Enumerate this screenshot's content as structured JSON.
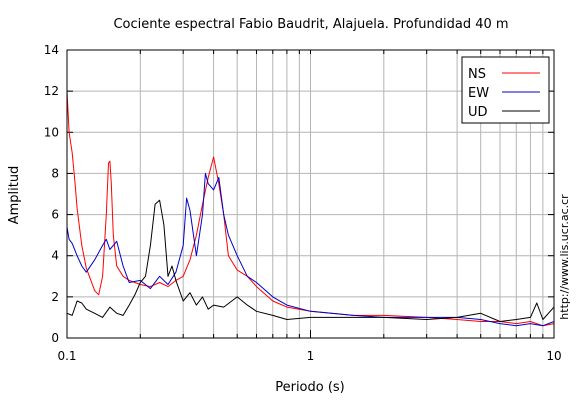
{
  "chart_data": {
    "type": "line",
    "title": "Cociente espectral Fabio Baudrit, Alajuela. Profundidad 40 m",
    "xlabel": "Periodo (s)",
    "ylabel": "Amplitud",
    "x_scale": "log",
    "xlim": [
      0.1,
      10
    ],
    "ylim": [
      0,
      14
    ],
    "x_ticks": [
      0.1,
      1,
      10
    ],
    "x_tick_labels": [
      "0.1",
      "1",
      "10"
    ],
    "y_ticks": [
      0,
      2,
      4,
      6,
      8,
      10,
      12,
      14
    ],
    "y_tick_labels": [
      "0",
      "2",
      "4",
      "6",
      "8",
      "10",
      "12",
      "14"
    ],
    "grid": true,
    "legend_position": "top-right",
    "side_text": "http://www.lis.ucr.ac.cr",
    "series": [
      {
        "name": "NS",
        "color": "#ff0000",
        "x": [
          0.1,
          0.102,
          0.105,
          0.108,
          0.11,
          0.115,
          0.12,
          0.13,
          0.135,
          0.14,
          0.145,
          0.148,
          0.15,
          0.152,
          0.155,
          0.16,
          0.17,
          0.18,
          0.2,
          0.22,
          0.24,
          0.26,
          0.28,
          0.3,
          0.32,
          0.34,
          0.36,
          0.38,
          0.4,
          0.42,
          0.44,
          0.46,
          0.5,
          0.55,
          0.6,
          0.7,
          0.8,
          1.0,
          1.5,
          2.0,
          3.0,
          4.0,
          5.0,
          6.0,
          7.0,
          8.0,
          9.0,
          10.0
        ],
        "y": [
          12.0,
          10.0,
          9.0,
          7.5,
          6.3,
          4.5,
          3.4,
          2.3,
          2.1,
          3.0,
          6.0,
          8.5,
          8.6,
          7.5,
          5.0,
          3.5,
          3.0,
          2.8,
          2.6,
          2.5,
          2.7,
          2.5,
          2.8,
          3.0,
          3.8,
          5.0,
          6.5,
          7.8,
          8.8,
          7.5,
          6.0,
          4.0,
          3.3,
          3.0,
          2.5,
          1.8,
          1.5,
          1.3,
          1.1,
          1.1,
          1.0,
          0.9,
          0.8,
          0.8,
          0.7,
          0.8,
          0.6,
          0.7
        ]
      },
      {
        "name": "EW",
        "color": "#0000cc",
        "x": [
          0.1,
          0.102,
          0.105,
          0.11,
          0.115,
          0.12,
          0.13,
          0.14,
          0.145,
          0.15,
          0.16,
          0.17,
          0.18,
          0.2,
          0.22,
          0.24,
          0.26,
          0.28,
          0.3,
          0.31,
          0.32,
          0.34,
          0.36,
          0.37,
          0.38,
          0.4,
          0.42,
          0.44,
          0.46,
          0.5,
          0.55,
          0.6,
          0.7,
          0.8,
          1.0,
          1.5,
          2.0,
          3.0,
          4.0,
          5.0,
          6.0,
          7.0,
          8.0,
          9.0,
          10.0
        ],
        "y": [
          5.4,
          4.8,
          4.6,
          4.0,
          3.5,
          3.2,
          3.8,
          4.5,
          4.8,
          4.3,
          4.7,
          3.5,
          2.7,
          2.8,
          2.4,
          3.0,
          2.6,
          3.2,
          4.5,
          6.8,
          6.2,
          4.0,
          6.0,
          8.0,
          7.5,
          7.2,
          7.8,
          6.0,
          5.0,
          4.0,
          3.0,
          2.7,
          2.0,
          1.6,
          1.3,
          1.1,
          1.0,
          1.0,
          1.0,
          0.9,
          0.7,
          0.6,
          0.7,
          0.6,
          0.8
        ]
      },
      {
        "name": "UD",
        "color": "#000000",
        "x": [
          0.1,
          0.105,
          0.11,
          0.115,
          0.12,
          0.13,
          0.14,
          0.15,
          0.16,
          0.17,
          0.18,
          0.19,
          0.2,
          0.21,
          0.22,
          0.23,
          0.24,
          0.25,
          0.26,
          0.27,
          0.28,
          0.3,
          0.32,
          0.34,
          0.36,
          0.38,
          0.4,
          0.44,
          0.5,
          0.55,
          0.6,
          0.7,
          0.8,
          1.0,
          1.5,
          2.0,
          3.0,
          4.0,
          5.0,
          6.0,
          7.0,
          8.0,
          8.5,
          9.0,
          10.0
        ],
        "y": [
          1.2,
          1.1,
          1.8,
          1.7,
          1.4,
          1.2,
          1.0,
          1.5,
          1.2,
          1.1,
          1.6,
          2.1,
          2.7,
          3.0,
          4.5,
          6.5,
          6.7,
          5.5,
          3.0,
          3.5,
          2.8,
          1.8,
          2.2,
          1.6,
          2.0,
          1.4,
          1.6,
          1.5,
          2.0,
          1.6,
          1.3,
          1.1,
          0.9,
          1.0,
          1.0,
          1.0,
          0.9,
          1.0,
          1.2,
          0.8,
          0.9,
          1.0,
          1.7,
          0.9,
          1.5
        ]
      }
    ]
  }
}
